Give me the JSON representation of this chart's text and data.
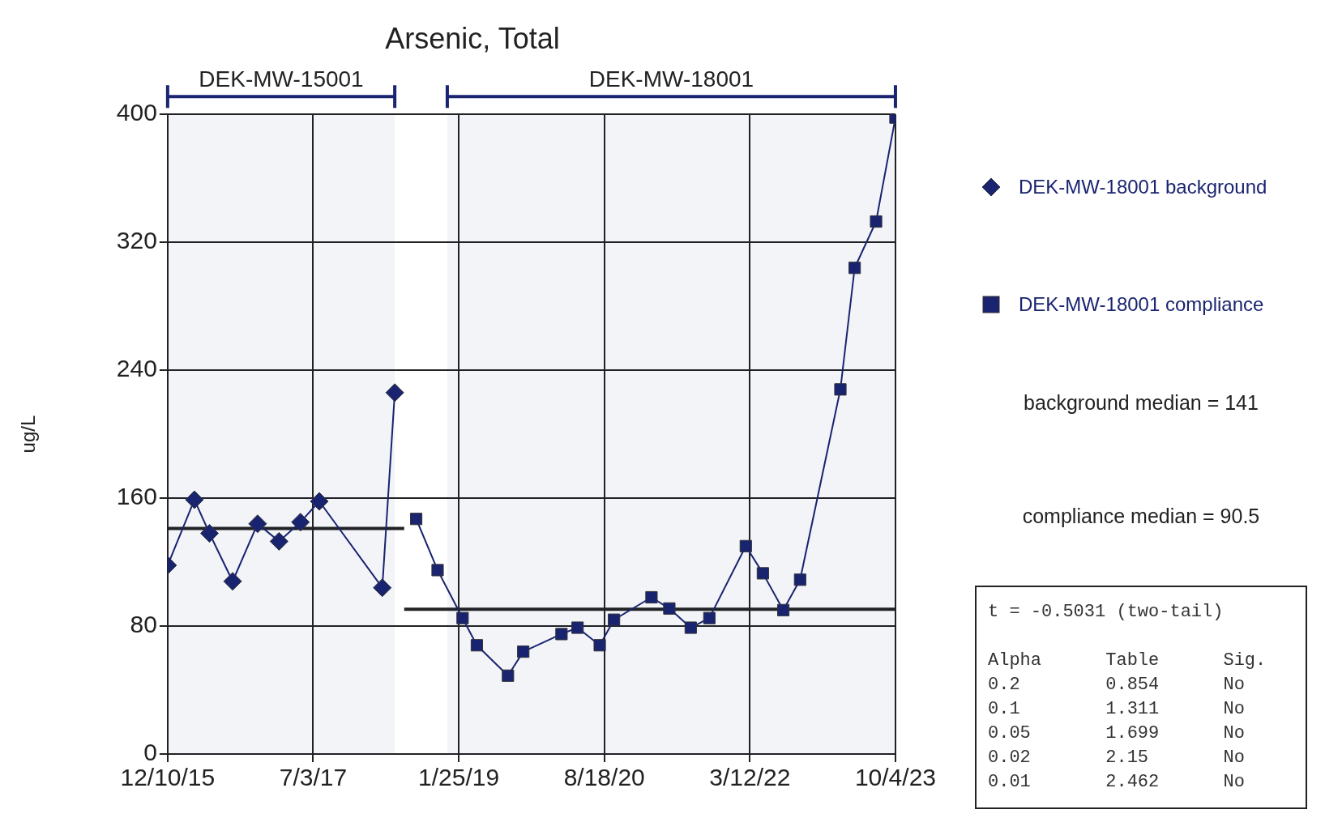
{
  "chart_data": {
    "type": "line",
    "title": "Arsenic, Total",
    "ylabel": "ug/L",
    "series": [
      {
        "name": "DEK-MW-18001 background",
        "color": "#1a2470",
        "marker": "diamond",
        "x": [
          "2015-12-10",
          "2016-03-24",
          "2016-05-22",
          "2016-08-21",
          "2016-11-27",
          "2017-02-19",
          "2017-05-14",
          "2017-07-27",
          "2018-03-31",
          "2018-05-19"
        ],
        "values": [
          118,
          159,
          138,
          108,
          144,
          133,
          145,
          158,
          104,
          226
        ]
      },
      {
        "name": "DEK-MW-18001 compliance",
        "color": "#1a2470",
        "marker": "square",
        "x": [
          "2018-08-11",
          "2018-11-03",
          "2019-02-09",
          "2019-04-06",
          "2019-08-06",
          "2019-10-05",
          "2020-03-03",
          "2020-05-05",
          "2020-07-31",
          "2020-09-25",
          "2021-02-19",
          "2021-04-30",
          "2021-07-23",
          "2021-10-04",
          "2022-02-24",
          "2022-05-02",
          "2022-07-21",
          "2022-09-25",
          "2023-03-02",
          "2023-04-27",
          "2023-07-20",
          "2023-10-04"
        ],
        "values": [
          147,
          115,
          85,
          68,
          49,
          64,
          75,
          79,
          68,
          84,
          98,
          91,
          79,
          85,
          130,
          113,
          90,
          109,
          228,
          304,
          333,
          398
        ]
      },
      {
        "color": "#222222",
        "marker": "none",
        "x": [
          "2015-12-10",
          "2018-06-25"
        ],
        "values": [
          141,
          141
        ]
      },
      {
        "color": "#222222",
        "marker": "none",
        "x": [
          "2018-06-25",
          "2023-10-04"
        ],
        "values": [
          90.5,
          90.5
        ]
      }
    ],
    "xlim": [
      "2015-12-10",
      "2023-10-04"
    ],
    "xticks": [
      {
        "value": "2015-12-10",
        "label": "12/10/15"
      },
      {
        "value": "2017-07-03",
        "label": "7/3/17"
      },
      {
        "value": "2019-01-25",
        "label": "1/25/19"
      },
      {
        "value": "2020-08-18",
        "label": "8/18/20"
      },
      {
        "value": "2022-03-12",
        "label": "3/12/22"
      },
      {
        "value": "2023-10-04",
        "label": "10/4/23"
      }
    ],
    "ylim": [
      0,
      400
    ],
    "yticks": [
      0,
      80,
      160,
      240,
      320,
      400
    ],
    "grid": true,
    "legend": "right",
    "bands": [
      {
        "axis": "x",
        "from": "2015-12-10",
        "to": "2018-05-19",
        "label": "DEK-MW-15001",
        "color": "#1a2470"
      },
      {
        "axis": "x",
        "from": "2018-12-11",
        "to": "2023-10-04",
        "label": "DEK-MW-18001",
        "color": "#1a2470"
      }
    ],
    "annotations": [
      "background median = 141",
      "compliance median = 90.5",
      "t = -0.5031 (two-tail)",
      "Alpha      Table      Sig.",
      "0.2        0.854      No",
      "0.1        1.311      No",
      "0.05       1.699      No",
      "0.02       2.15       No",
      "0.01       2.462      No"
    ]
  }
}
